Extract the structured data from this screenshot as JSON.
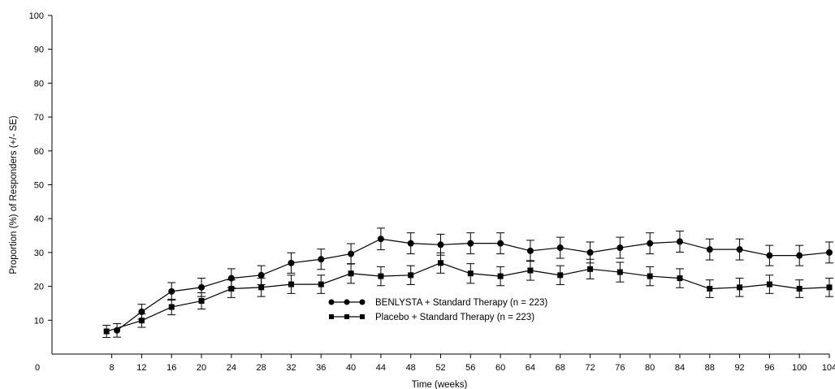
{
  "chart_data": {
    "type": "line",
    "title": "",
    "xlabel": "Time (weeks)",
    "ylabel": "Proportion (%) of Responders (+/- SE)",
    "xlim": [
      0,
      104
    ],
    "ylim": [
      0,
      100
    ],
    "x_ticks": [
      "0",
      "8",
      "12",
      "16",
      "20",
      "24",
      "28",
      "32",
      "36",
      "40",
      "44",
      "48",
      "52",
      "56",
      "60",
      "64",
      "68",
      "72",
      "76",
      "80",
      "84",
      "88",
      "92",
      "96",
      "100",
      "104"
    ],
    "y_ticks": [
      "10",
      "20",
      "30",
      "40",
      "50",
      "60",
      "70",
      "80",
      "90",
      "100"
    ],
    "grid": false,
    "legend_position": "center",
    "series": [
      {
        "name": "BENLYSTA + Standard Therapy (n = 223)",
        "marker": "circle",
        "color": "#000000",
        "x": [
          8,
          12,
          16,
          20,
          24,
          28,
          32,
          36,
          40,
          44,
          48,
          52,
          56,
          60,
          64,
          68,
          72,
          76,
          80,
          84,
          88,
          92,
          96,
          100,
          104
        ],
        "values": [
          7,
          12.5,
          18.5,
          19.7,
          22.4,
          23.3,
          26.9,
          28,
          29.6,
          34,
          32.7,
          32.3,
          32.7,
          32.7,
          30.5,
          31.4,
          30,
          31.4,
          32.7,
          33.2,
          30.9,
          30.9,
          29.1,
          29.1,
          30
        ],
        "se": [
          2,
          2.2,
          2.6,
          2.7,
          2.8,
          2.8,
          3,
          3,
          3,
          3.2,
          3.1,
          3.1,
          3.1,
          3.1,
          3.1,
          3.1,
          3.1,
          3.1,
          3.1,
          3.1,
          3.1,
          3.1,
          3,
          3,
          3.1
        ]
      },
      {
        "name": "Placebo + Standard Therapy (n = 223)",
        "marker": "square",
        "color": "#000000",
        "x": [
          8,
          12,
          16,
          20,
          24,
          28,
          32,
          36,
          40,
          44,
          48,
          52,
          56,
          60,
          64,
          68,
          72,
          76,
          80,
          84,
          88,
          92,
          96,
          100,
          104
        ],
        "values": [
          6.7,
          9.9,
          13.9,
          15.7,
          19.3,
          19.7,
          20.6,
          20.6,
          23.8,
          23,
          23.3,
          26.9,
          23.8,
          23,
          24.7,
          23.3,
          25.1,
          24.2,
          23,
          22.4,
          19.3,
          19.7,
          20.6,
          19.3,
          19.7
        ],
        "se": [
          1.8,
          2,
          2.3,
          2.4,
          2.6,
          2.7,
          2.7,
          2.7,
          2.9,
          2.8,
          2.8,
          3,
          2.9,
          2.8,
          2.9,
          2.8,
          2.9,
          2.9,
          2.8,
          2.8,
          2.6,
          2.7,
          2.7,
          2.6,
          2.7
        ]
      }
    ]
  }
}
